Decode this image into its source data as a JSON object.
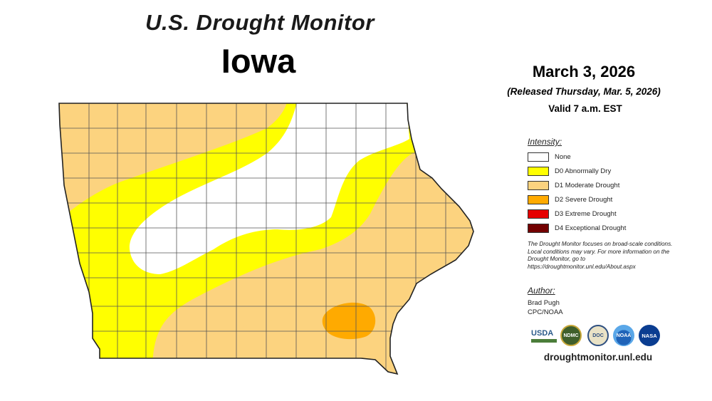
{
  "header": {
    "title": "U.S. Drought Monitor",
    "state": "Iowa"
  },
  "info": {
    "date": "March 3, 2026",
    "released": "(Released Thursday, Mar. 5, 2026)",
    "valid": "Valid 7 a.m. EST"
  },
  "legend": {
    "heading": "Intensity:",
    "items": [
      {
        "label": "None",
        "color": "#ffffff"
      },
      {
        "label": "D0 Abnormally Dry",
        "color": "#ffff00"
      },
      {
        "label": "D1 Moderate Drought",
        "color": "#fcd37f"
      },
      {
        "label": "D2 Severe Drought",
        "color": "#ffaa00"
      },
      {
        "label": "D3 Extreme Drought",
        "color": "#e60000"
      },
      {
        "label": "D4 Exceptional Drought",
        "color": "#730000"
      }
    ]
  },
  "note": "The Drought Monitor focuses on broad-scale conditions. Local conditions may vary. For more information on the Drought Monitor, go to https://droughtmonitor.unl.edu/About.aspx",
  "author": {
    "heading": "Author:",
    "name": "Brad Pugh",
    "org": "CPC/NOAA"
  },
  "logos": {
    "usda": "USDA",
    "ndmc": "NDMC",
    "commerce": "DOC",
    "noaa": "NOAA",
    "nasa": "NASA"
  },
  "website": "droughtmonitor.unl.edu",
  "map_colors": {
    "none": "#ffffff",
    "d0": "#ffff00",
    "d1": "#fcd37f",
    "d2": "#ffaa00",
    "border": "#222222",
    "county_lines": "#555555"
  }
}
